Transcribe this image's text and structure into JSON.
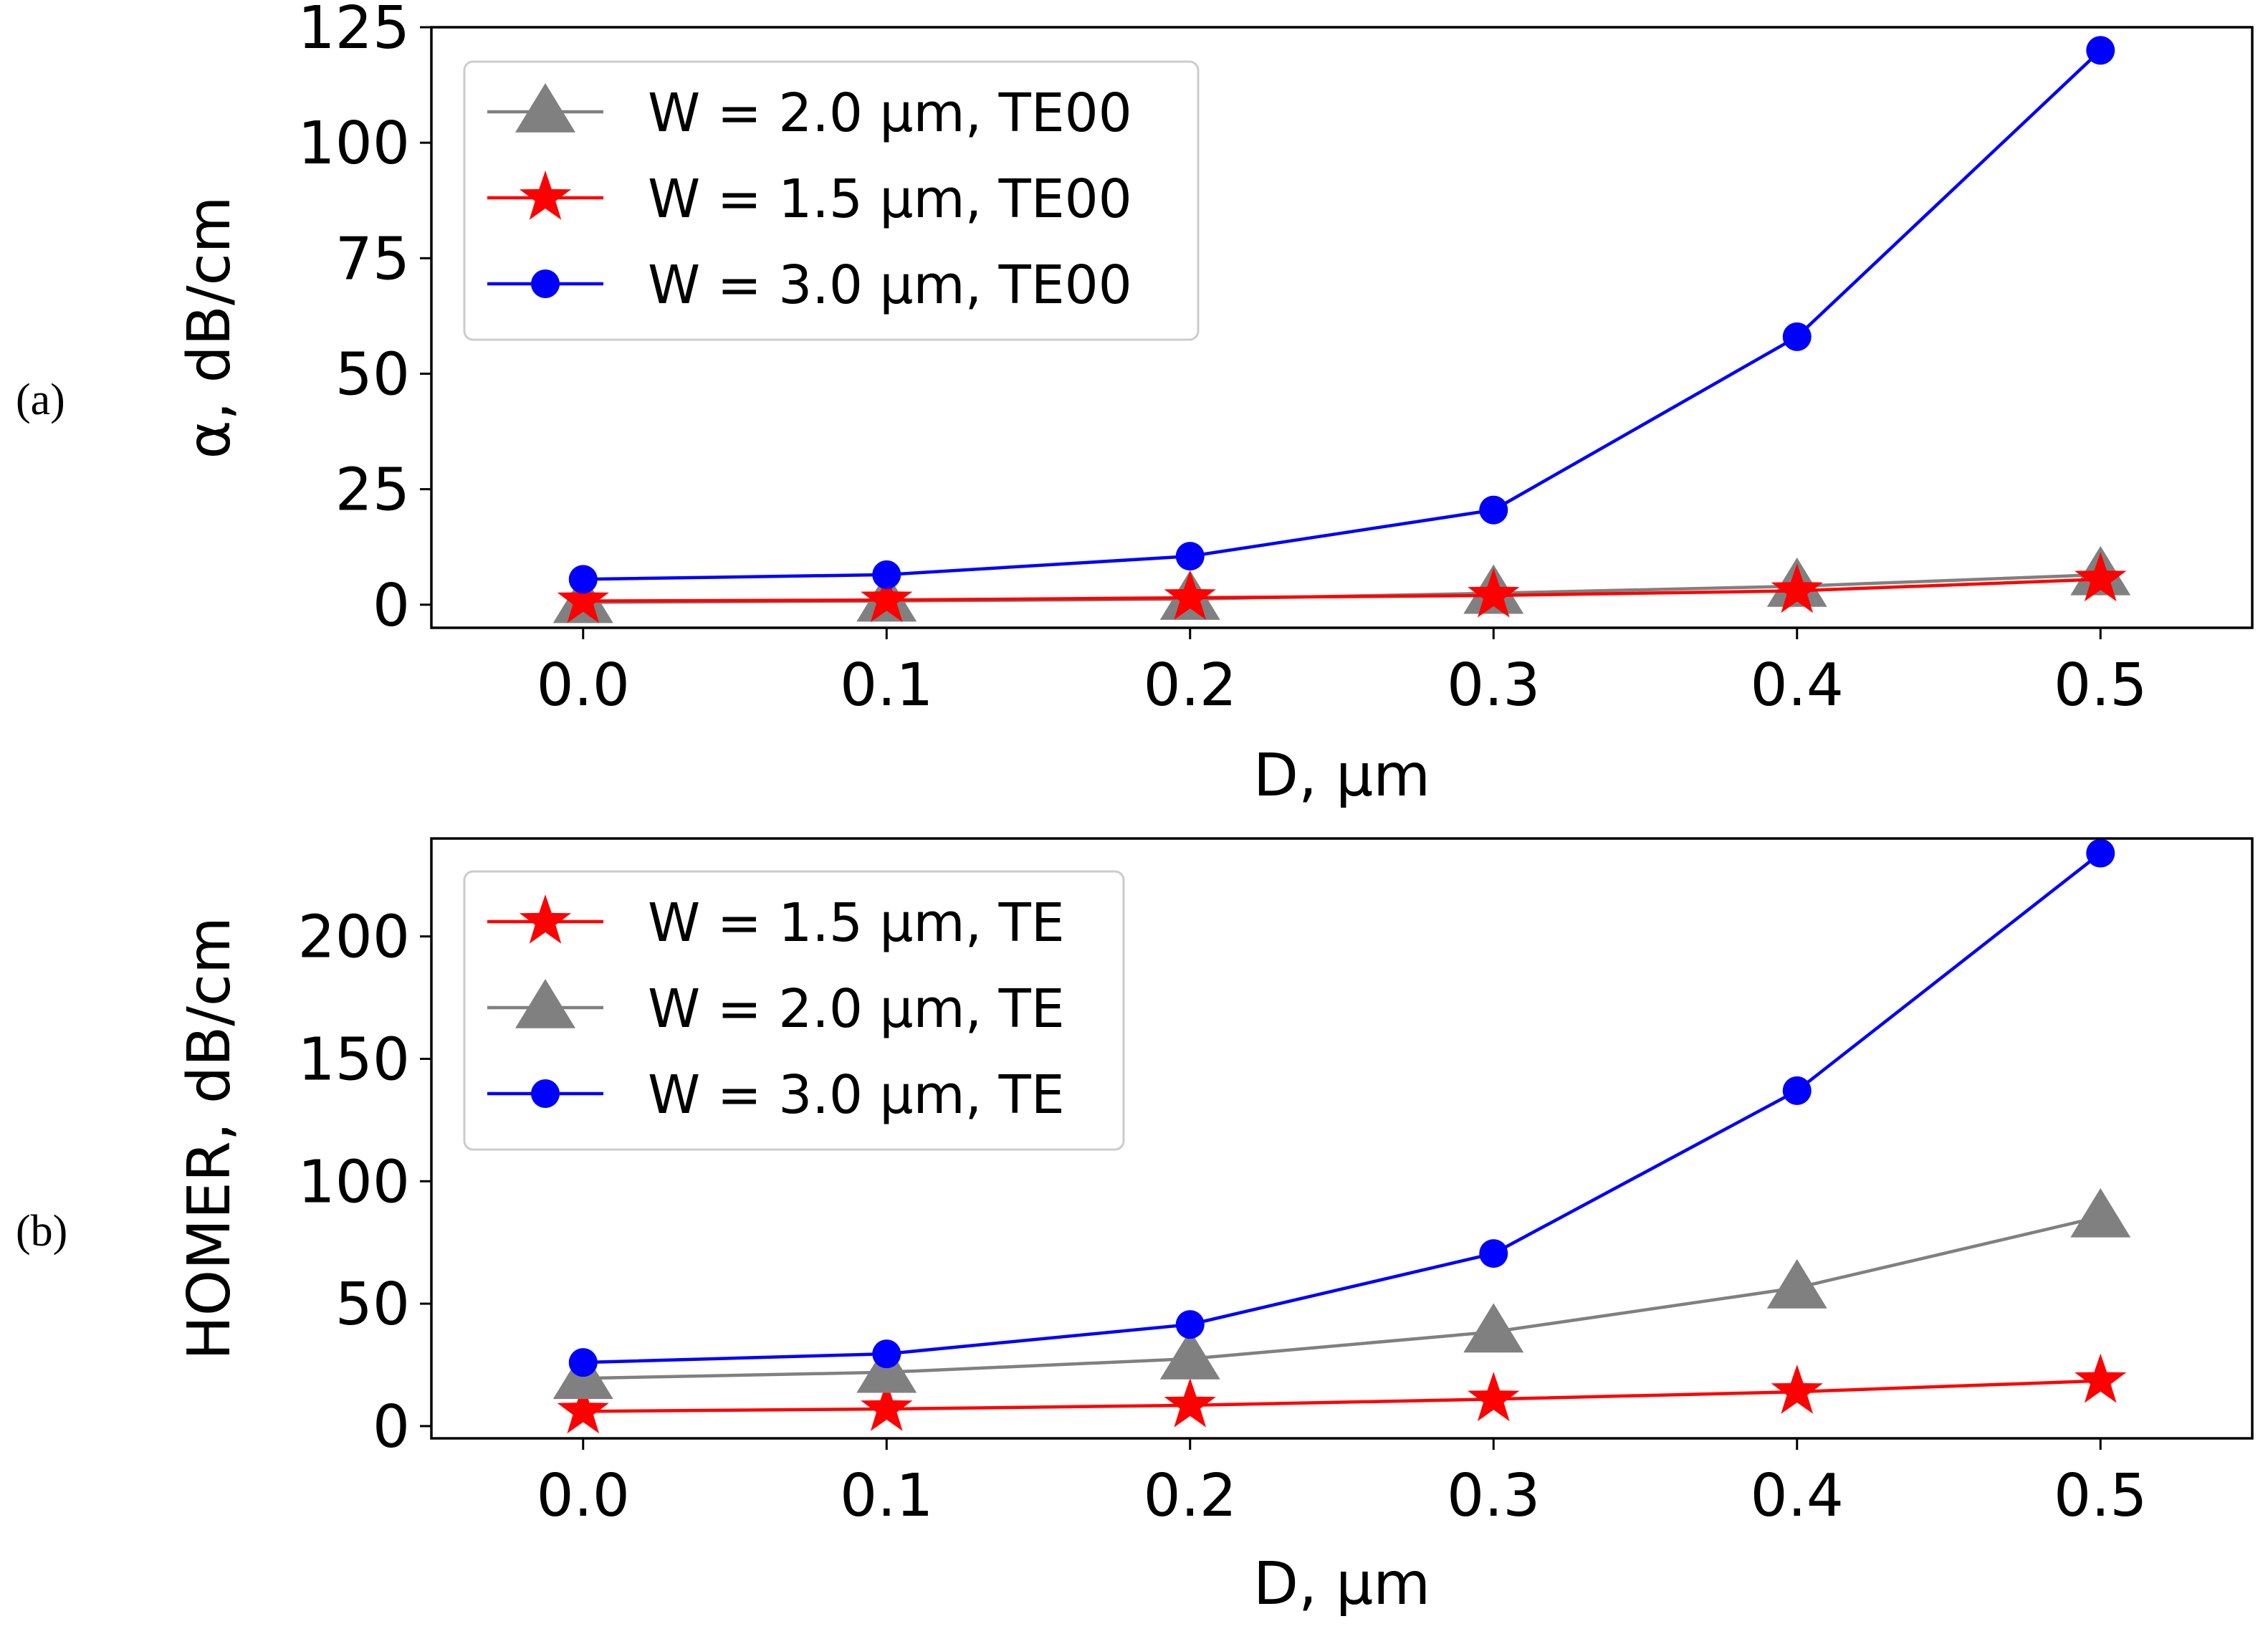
{
  "colors": {
    "gray": "#808080",
    "red": "#ff0000",
    "blue": "#0000ff",
    "frame": "#000000",
    "legend_border": "#cccccc"
  },
  "chart_data": [
    {
      "type": "line",
      "panel_label": "(a)",
      "xlabel": "D, μm",
      "ylabel": "α, dB/cm",
      "xlim": [
        -0.05,
        0.55
      ],
      "ylim": [
        -5,
        125
      ],
      "x_ticks": [
        0.0,
        0.1,
        0.2,
        0.3,
        0.4,
        0.5
      ],
      "x_tick_labels": [
        "0.0",
        "0.1",
        "0.2",
        "0.3",
        "0.4",
        "0.5"
      ],
      "y_ticks": [
        0,
        25,
        50,
        75,
        100,
        125
      ],
      "y_tick_labels": [
        "0",
        "25",
        "50",
        "75",
        "100",
        "125"
      ],
      "legend_position": "upper-left",
      "series": [
        {
          "name": "W = 2.0 μm, TE00",
          "color": "#808080",
          "marker": "triangle",
          "x": [
            0.0,
            0.1,
            0.2,
            0.3,
            0.4,
            0.5
          ],
          "values": [
            0.5,
            0.8,
            1.2,
            2.5,
            4.0,
            6.5
          ]
        },
        {
          "name": "W = 1.5 μm, TE00",
          "color": "#ff0000",
          "marker": "star",
          "x": [
            0.0,
            0.1,
            0.2,
            0.3,
            0.4,
            0.5
          ],
          "values": [
            0.8,
            1.0,
            1.5,
            2.0,
            3.0,
            5.5
          ]
        },
        {
          "name": "W = 3.0 μm, TE00",
          "color": "#0000ff",
          "marker": "circle",
          "x": [
            0.0,
            0.1,
            0.2,
            0.3,
            0.4,
            0.5
          ],
          "values": [
            5.5,
            6.5,
            10.5,
            20.5,
            58.0,
            120.0
          ]
        }
      ]
    },
    {
      "type": "line",
      "panel_label": "(b)",
      "xlabel": "D, μm",
      "ylabel": "HOMER, dB/cm",
      "xlim": [
        -0.05,
        0.55
      ],
      "ylim": [
        -5,
        240
      ],
      "x_ticks": [
        0.0,
        0.1,
        0.2,
        0.3,
        0.4,
        0.5
      ],
      "x_tick_labels": [
        "0.0",
        "0.1",
        "0.2",
        "0.3",
        "0.4",
        "0.5"
      ],
      "y_ticks": [
        0,
        50,
        100,
        150,
        200
      ],
      "y_tick_labels": [
        "0",
        "50",
        "100",
        "150",
        "200"
      ],
      "legend_position": "upper-left",
      "series": [
        {
          "name": "W = 1.5 μm, TE",
          "color": "#ff0000",
          "marker": "star",
          "x": [
            0.0,
            0.1,
            0.2,
            0.3,
            0.4,
            0.5
          ],
          "values": [
            6,
            7,
            8.5,
            11,
            14,
            18.5
          ]
        },
        {
          "name": "W = 2.0 μm, TE",
          "color": "#808080",
          "marker": "triangle",
          "x": [
            0.0,
            0.1,
            0.2,
            0.3,
            0.4,
            0.5
          ],
          "values": [
            19.5,
            22,
            27.5,
            38.5,
            56.5,
            85.5
          ]
        },
        {
          "name": "W = 3.0 μm, TE",
          "color": "#0000ff",
          "marker": "circle",
          "x": [
            0.0,
            0.1,
            0.2,
            0.3,
            0.4,
            0.5
          ],
          "values": [
            26,
            29.5,
            41.5,
            70.5,
            137,
            234
          ]
        }
      ]
    }
  ]
}
